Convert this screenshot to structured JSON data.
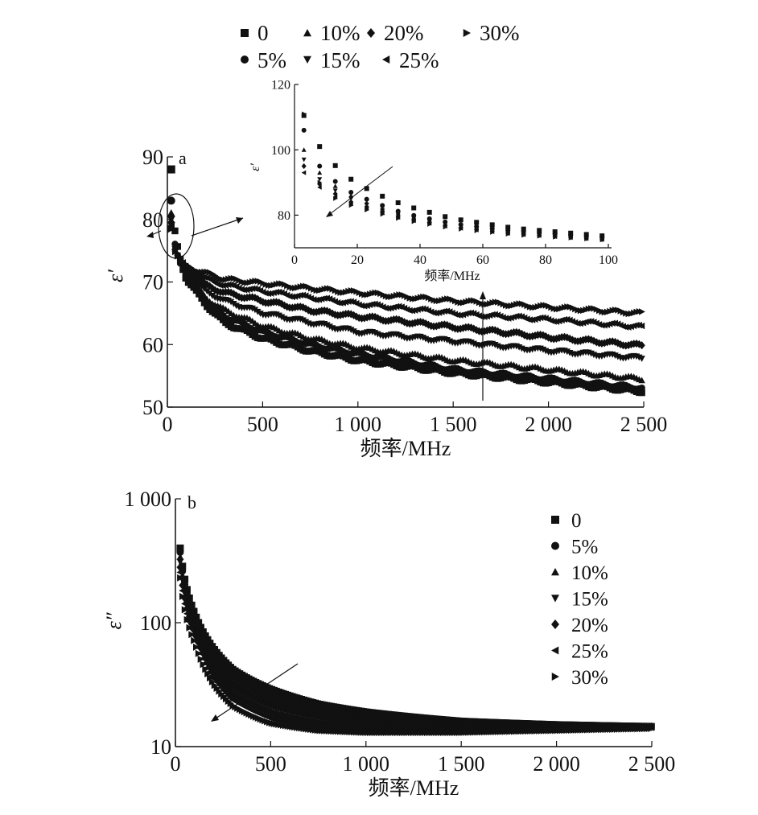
{
  "legend_top": {
    "row1": [
      {
        "label": "0",
        "marker": "square"
      },
      {
        "label": "10%",
        "marker": "triangle-up"
      },
      {
        "label": "20%",
        "marker": "diamond"
      },
      {
        "label": "30%",
        "marker": "triangle-right"
      }
    ],
    "row2": [
      {
        "label": "5%",
        "marker": "circle"
      },
      {
        "label": "15%",
        "marker": "triangle-down"
      },
      {
        "label": "25%",
        "marker": "triangle-left"
      }
    ]
  },
  "chart_data": [
    {
      "id": "a",
      "panel_label": "a",
      "type": "scatter",
      "xlabel": "频率/MHz",
      "ylabel": "ε′",
      "xlim": [
        0,
        2500
      ],
      "ylim": [
        50,
        90
      ],
      "xticks": [
        0,
        500,
        1000,
        1500,
        2000,
        2500
      ],
      "xtick_labels": [
        "0",
        "500",
        "1 000",
        "1 500",
        "2 000",
        "2 500"
      ],
      "yticks": [
        50,
        60,
        70,
        80,
        90
      ],
      "ytick_labels": [
        "50",
        "60",
        "70",
        "80",
        "90"
      ],
      "marker_color": "#111111",
      "series": [
        {
          "name": "0",
          "marker": "square",
          "first_y": 88,
          "x": [
            100,
            200,
            300,
            500,
            750,
            1000,
            1500,
            2000,
            2500
          ],
          "y": [
            70.5,
            66.5,
            63.5,
            61,
            59,
            57.5,
            55.5,
            54,
            52.5
          ]
        },
        {
          "name": "5%",
          "marker": "circle",
          "first_y": 83,
          "x": [
            100,
            200,
            300,
            500,
            750,
            1000,
            1500,
            2000,
            2500
          ],
          "y": [
            71,
            67,
            64.5,
            62,
            60,
            58.5,
            56,
            54.5,
            53
          ]
        },
        {
          "name": "10%",
          "marker": "triangle-up",
          "first_y": 81,
          "x": [
            100,
            200,
            300,
            500,
            750,
            1000,
            1500,
            2000,
            2500
          ],
          "y": [
            71.3,
            67.5,
            65.5,
            63,
            61,
            59.5,
            57.5,
            56,
            54.5
          ]
        },
        {
          "name": "15%",
          "marker": "triangle-down",
          "first_y": 80,
          "x": [
            100,
            200,
            300,
            500,
            750,
            1000,
            1500,
            2000,
            2500
          ],
          "y": [
            71.6,
            68.5,
            67,
            65,
            63.5,
            62,
            60.5,
            59,
            57.8
          ]
        },
        {
          "name": "20%",
          "marker": "diamond",
          "first_y": 79.5,
          "x": [
            100,
            200,
            300,
            500,
            750,
            1000,
            1500,
            2000,
            2500
          ],
          "y": [
            72,
            69.5,
            68.3,
            67,
            65.5,
            64.5,
            62.8,
            61.2,
            59.8
          ]
        },
        {
          "name": "25%",
          "marker": "triangle-left",
          "first_y": 79,
          "x": [
            100,
            200,
            300,
            500,
            750,
            1000,
            1500,
            2000,
            2500
          ],
          "y": [
            72.2,
            70.5,
            69.5,
            68.5,
            67.5,
            66.5,
            65,
            64,
            62.8
          ]
        },
        {
          "name": "30%",
          "marker": "triangle-right",
          "first_y": 78.5,
          "x": [
            100,
            200,
            300,
            500,
            750,
            1000,
            1500,
            2000,
            2500
          ],
          "y": [
            72.5,
            71.5,
            70.5,
            69.8,
            69,
            68.3,
            67,
            66,
            65
          ]
        }
      ]
    },
    {
      "id": "a_inset",
      "type": "scatter",
      "xlabel": "频率/MHz",
      "ylabel": "ε′",
      "xlim": [
        0,
        100
      ],
      "ylim": [
        70,
        120
      ],
      "xticks": [
        0,
        20,
        40,
        60,
        80,
        100
      ],
      "xtick_labels": [
        "0",
        "20",
        "40",
        "60",
        "80",
        "100"
      ],
      "yticks": [
        80,
        100,
        120
      ],
      "ytick_labels": [
        "80",
        "100",
        "120"
      ],
      "series": [
        {
          "name": "0",
          "marker": "square",
          "x": [
            3,
            8,
            12,
            18,
            25,
            35,
            50,
            70,
            100
          ],
          "y": [
            110.5,
            101,
            96,
            91,
            87,
            83,
            79,
            76,
            73.5
          ]
        },
        {
          "name": "5%",
          "marker": "circle",
          "x": [
            3,
            8,
            12,
            18,
            25,
            35,
            50,
            70,
            100
          ],
          "y": [
            106,
            95,
            91,
            87,
            84,
            80.5,
            77.5,
            75,
            73
          ]
        },
        {
          "name": "10%",
          "marker": "triangle-up",
          "x": [
            3,
            8,
            12,
            18,
            25,
            35,
            50,
            70,
            100
          ],
          "y": [
            100,
            93,
            89.5,
            86,
            83,
            80,
            77,
            74.8,
            72.8
          ]
        },
        {
          "name": "15%",
          "marker": "triangle-down",
          "x": [
            3,
            8,
            12,
            18,
            25,
            35,
            50,
            70,
            100
          ],
          "y": [
            97,
            91,
            88,
            85,
            82.5,
            79.5,
            76.8,
            74.6,
            72.6
          ]
        },
        {
          "name": "20%",
          "marker": "diamond",
          "x": [
            3,
            8,
            12,
            18,
            25,
            35,
            50,
            70,
            100
          ],
          "y": [
            95,
            89.5,
            87,
            84,
            82,
            79,
            76.5,
            74.4,
            72.5
          ]
        },
        {
          "name": "25%",
          "marker": "triangle-left",
          "x": [
            3,
            8,
            12,
            18,
            25,
            35,
            50,
            70,
            100
          ],
          "y": [
            93,
            88.5,
            86,
            83.5,
            81.5,
            78.8,
            76.3,
            74.2,
            72.4
          ]
        },
        {
          "name": "30%",
          "marker": "triangle-right",
          "x": [
            3,
            8,
            12,
            18,
            25,
            35,
            50,
            70,
            100
          ],
          "y": [
            111,
            90,
            85.5,
            83,
            81,
            78.5,
            76,
            74,
            72.3
          ]
        }
      ]
    },
    {
      "id": "b",
      "panel_label": "b",
      "type": "scatter",
      "xlabel": "频率/MHz",
      "ylabel": "ε″",
      "yscale": "log",
      "xlim": [
        0,
        2500
      ],
      "ylim": [
        10,
        1000
      ],
      "xticks": [
        0,
        500,
        1000,
        1500,
        2000,
        2500
      ],
      "xtick_labels": [
        "0",
        "500",
        "1 000",
        "1 500",
        "2 000",
        "2 500"
      ],
      "yticks": [
        10,
        100,
        1000
      ],
      "ytick_labels": [
        "10",
        "100",
        "1 000"
      ],
      "legend_placement": "right",
      "series": [
        {
          "name": "0",
          "marker": "square",
          "x": [
            25,
            50,
            100,
            200,
            300,
            500,
            750,
            1000,
            1500,
            2000,
            2500
          ],
          "y": [
            400,
            220,
            120,
            62,
            42,
            29,
            22,
            19,
            16,
            15,
            14.5
          ]
        },
        {
          "name": "5%",
          "marker": "circle",
          "x": [
            25,
            50,
            100,
            200,
            300,
            500,
            750,
            1000,
            1500,
            2000,
            2500
          ],
          "y": [
            370,
            200,
            110,
            56,
            38,
            26,
            20,
            17.5,
            15.5,
            14.8,
            14.5
          ]
        },
        {
          "name": "10%",
          "marker": "triangle-up",
          "x": [
            25,
            50,
            100,
            200,
            300,
            500,
            750,
            1000,
            1500,
            2000,
            2500
          ],
          "y": [
            340,
            185,
            100,
            50,
            34,
            23.5,
            18.5,
            16.5,
            15,
            14.5,
            14.5
          ]
        },
        {
          "name": "15%",
          "marker": "triangle-down",
          "x": [
            25,
            50,
            100,
            200,
            300,
            500,
            750,
            1000,
            1500,
            2000,
            2500
          ],
          "y": [
            310,
            170,
            92,
            45,
            30,
            21,
            17,
            15.5,
            14.5,
            14.3,
            14.5
          ]
        },
        {
          "name": "20%",
          "marker": "diamond",
          "x": [
            25,
            50,
            100,
            200,
            300,
            500,
            750,
            1000,
            1500,
            2000,
            2500
          ],
          "y": [
            280,
            155,
            85,
            40,
            27,
            19,
            15.5,
            14.5,
            14,
            14,
            14.5
          ]
        },
        {
          "name": "25%",
          "marker": "triangle-left",
          "x": [
            25,
            50,
            100,
            200,
            300,
            500,
            750,
            1000,
            1500,
            2000,
            2500
          ],
          "y": [
            255,
            140,
            78,
            36,
            24,
            17,
            14.5,
            13.8,
            13.5,
            13.8,
            14.3
          ]
        },
        {
          "name": "30%",
          "marker": "triangle-right",
          "x": [
            25,
            50,
            100,
            200,
            300,
            500,
            750,
            1000,
            1500,
            2000,
            2500
          ],
          "y": [
            230,
            125,
            70,
            32,
            21.5,
            15.5,
            13.5,
            13,
            13,
            13.5,
            14
          ]
        }
      ]
    }
  ]
}
